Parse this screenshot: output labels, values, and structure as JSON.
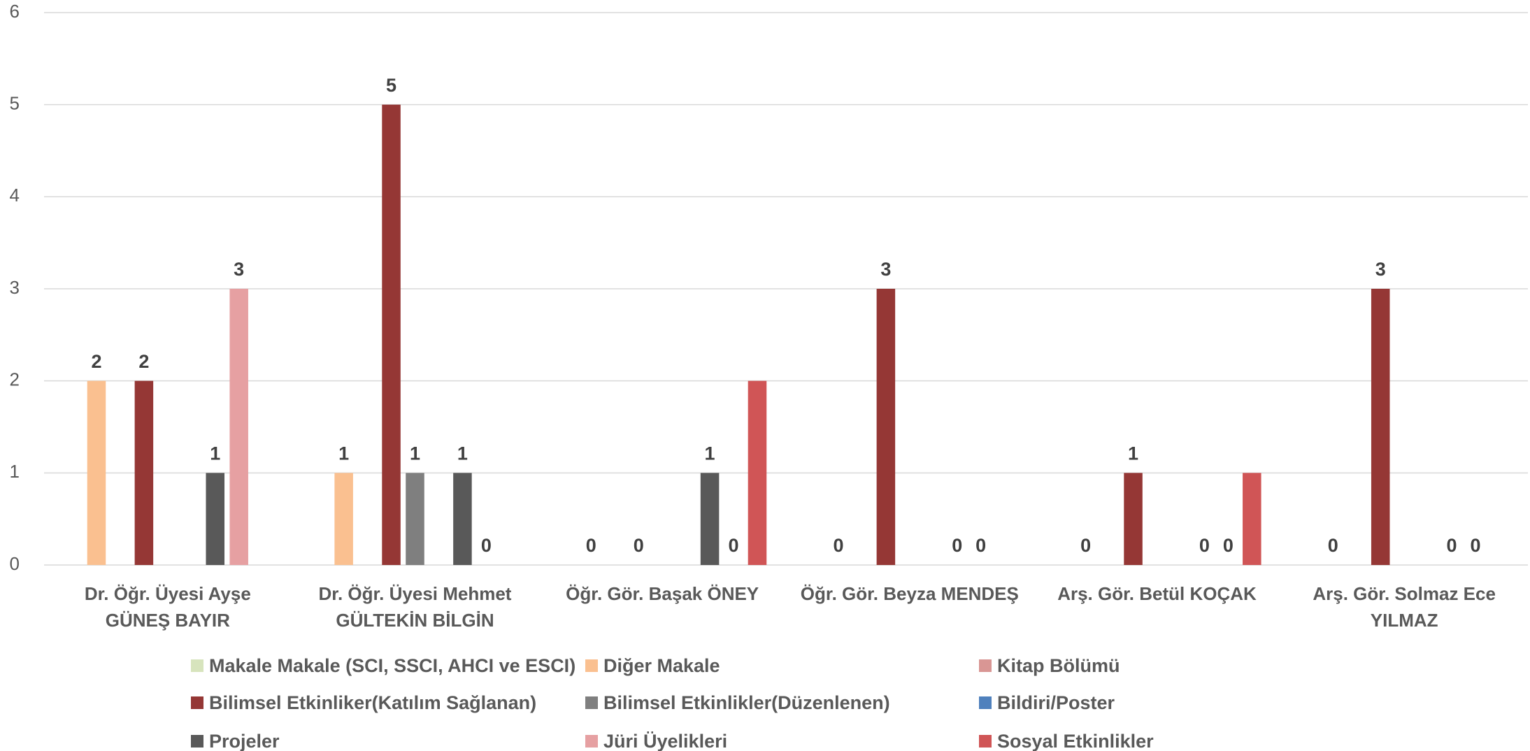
{
  "chart_data": {
    "type": "bar",
    "categories": [
      "Dr. Öğr. Üyesi Ayşe GÜNEŞ BAYIR",
      "Dr. Öğr. Üyesi Mehmet GÜLTEKİN BİLGİN",
      "Öğr. Gör. Başak ÖNEY",
      "Öğr. Gör. Beyza MENDEŞ",
      "Arş. Gör. Betül KOÇAK",
      "Arş. Gör. Solmaz Ece YILMAZ"
    ],
    "series": [
      {
        "name": "Makale Makale (SCI, SSCI, AHCI ve ESCI)",
        "color": "#d7e4bd",
        "values": [
          null,
          null,
          null,
          null,
          null,
          null
        ],
        "data_labels": true
      },
      {
        "name": "Diğer Makale",
        "color": "#fac090",
        "values": [
          2,
          1,
          0,
          0,
          0,
          0
        ],
        "data_labels": true
      },
      {
        "name": "Kitap Bölümü",
        "color": "#d99694",
        "values": [
          null,
          null,
          null,
          null,
          null,
          null
        ],
        "data_labels": true
      },
      {
        "name": "Bilimsel Etkinliker(Katılım Sağlanan)",
        "color": "#953735",
        "values": [
          2,
          5,
          0,
          3,
          1,
          3
        ],
        "data_labels": true
      },
      {
        "name": "Bilimsel Etkinlikler(Düzenlenen)",
        "color": "#7f7f7f",
        "values": [
          null,
          1,
          null,
          null,
          null,
          null
        ],
        "data_labels": true
      },
      {
        "name": "Bildiri/Poster",
        "color": "#4f81bd",
        "values": [
          null,
          null,
          null,
          null,
          null,
          null
        ],
        "data_labels": true
      },
      {
        "name": "Projeler",
        "color": "#595959",
        "values": [
          1,
          1,
          1,
          0,
          0,
          0
        ],
        "data_labels": true
      },
      {
        "name": "Jüri Üyelikleri",
        "color": "#e6a0a2",
        "values": [
          3,
          0,
          0,
          0,
          0,
          0
        ],
        "data_labels": true
      },
      {
        "name": "Sosyal Etkinlikler",
        "color": "#d05556",
        "values": [
          null,
          null,
          2,
          null,
          1,
          null
        ],
        "data_labels": false
      }
    ],
    "ylim": [
      0,
      6
    ],
    "yticks": [
      0,
      1,
      2,
      3,
      4,
      5,
      6
    ],
    "grid": true,
    "legend": "bottom"
  }
}
